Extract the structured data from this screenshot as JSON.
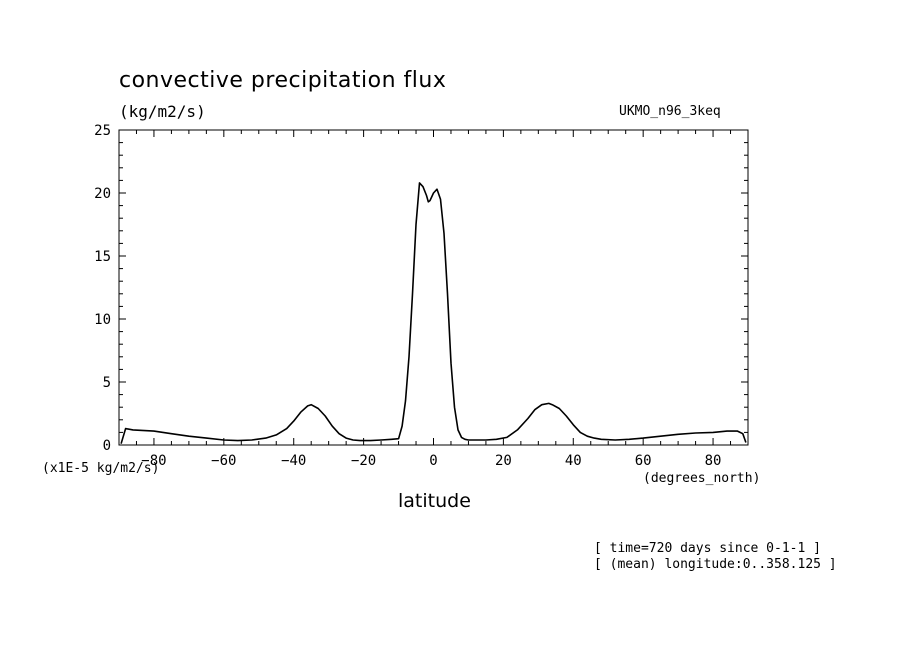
{
  "chart_data": {
    "type": "line",
    "title": "convective precipitation flux",
    "units": "(kg/m2/s)",
    "dataset": "UKMO_n96_3keq",
    "scale_note": "(x1E-5 kg/m2/s)",
    "xlabel": "latitude",
    "xunits": "(degrees_north)",
    "info": [
      "[ time=720 days since 0-1-1 ]",
      "[ (mean) longitude:0..358.125 ]"
    ],
    "xlim": [
      -90,
      90
    ],
    "ylim": [
      0,
      25
    ],
    "xticks": [
      -80,
      -60,
      -40,
      -20,
      0,
      20,
      40,
      60,
      80
    ],
    "yticks": [
      0,
      5,
      10,
      15,
      20,
      25
    ],
    "grid": false,
    "x": [
      -89.4,
      -88.1,
      -86,
      -80,
      -75,
      -70,
      -65,
      -60,
      -56,
      -52,
      -48,
      -45,
      -42,
      -40,
      -38,
      -36,
      -35,
      -33,
      -31,
      -29,
      -27,
      -25,
      -23,
      -21,
      -18,
      -15,
      -12,
      -10,
      -9,
      -8,
      -7,
      -6,
      -5,
      -4,
      -3,
      -2,
      -1.5,
      -1,
      0,
      1,
      2,
      3,
      4,
      5,
      6,
      7,
      8,
      9,
      10,
      12,
      15,
      18,
      21,
      24,
      27,
      29,
      31,
      33,
      34,
      36,
      38,
      40,
      42,
      44,
      46,
      48,
      52,
      56,
      60,
      65,
      70,
      75,
      80,
      84,
      87,
      88.5,
      89.4
    ],
    "y": [
      0.1,
      1.3,
      1.2,
      1.1,
      0.9,
      0.7,
      0.55,
      0.4,
      0.35,
      0.4,
      0.55,
      0.8,
      1.3,
      1.9,
      2.6,
      3.1,
      3.2,
      2.9,
      2.3,
      1.5,
      0.9,
      0.55,
      0.4,
      0.35,
      0.35,
      0.4,
      0.45,
      0.5,
      1.5,
      3.5,
      7.0,
      12.0,
      17.5,
      20.8,
      20.5,
      19.8,
      19.3,
      19.4,
      20.0,
      20.3,
      19.5,
      16.8,
      12.0,
      6.5,
      3.0,
      1.2,
      0.6,
      0.45,
      0.4,
      0.4,
      0.4,
      0.45,
      0.6,
      1.2,
      2.1,
      2.8,
      3.2,
      3.3,
      3.2,
      2.9,
      2.3,
      1.6,
      1.0,
      0.7,
      0.55,
      0.45,
      0.4,
      0.45,
      0.55,
      0.7,
      0.85,
      0.95,
      1.0,
      1.1,
      1.1,
      0.9,
      0.2
    ]
  }
}
